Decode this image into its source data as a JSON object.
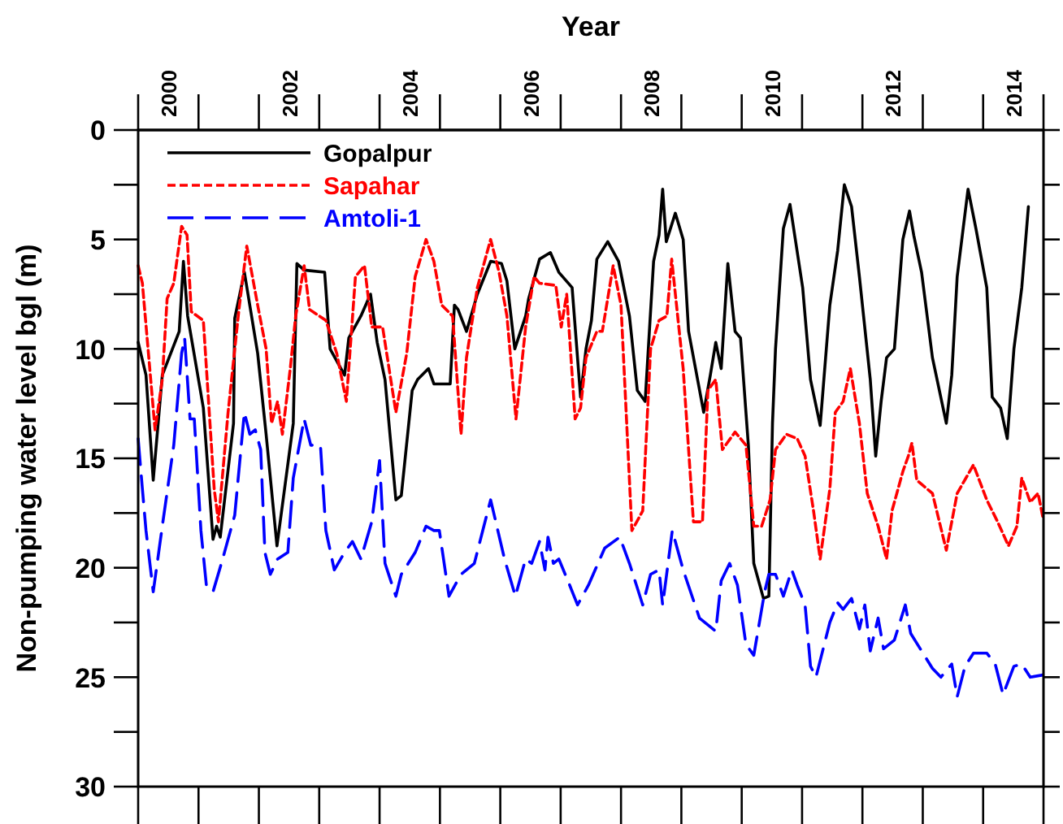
{
  "chart_data": {
    "type": "line",
    "xlabel": "Year",
    "ylabel": "Non-pumping water level bgl (m)",
    "xlim": [
      2000,
      2015
    ],
    "xticks": [
      {
        "value": 2000.5,
        "label": "2000"
      },
      {
        "value": 2002.5,
        "label": "2002"
      },
      {
        "value": 2004.5,
        "label": "2004"
      },
      {
        "value": 2006.5,
        "label": "2006"
      },
      {
        "value": 2008.5,
        "label": "2008"
      },
      {
        "value": 2010.5,
        "label": "2010"
      },
      {
        "value": 2012.5,
        "label": "2012"
      },
      {
        "value": 2014.5,
        "label": "2014"
      }
    ],
    "ylim": [
      30,
      0
    ],
    "yticks": [
      0,
      {
        "value": 2.5,
        "label": null
      },
      5,
      {
        "value": 7.5,
        "label": null
      },
      10,
      {
        "value": 12.5,
        "label": null
      },
      15,
      {
        "value": 17.5,
        "label": null
      },
      20,
      {
        "value": 22.5,
        "label": null
      },
      25,
      {
        "value": 27.5,
        "label": null
      },
      30
    ],
    "grid": false,
    "legend": "top left",
    "marker": "none",
    "series": [
      {
        "name": "Gopalpur",
        "color": "#000000",
        "line_style": "solid",
        "x": [
          2000.0,
          2000.13,
          2000.25,
          2000.4,
          2000.68,
          2000.75,
          2000.82,
          2001.08,
          2001.24,
          2001.3,
          2001.36,
          2001.58,
          2001.6,
          2001.76,
          2001.98,
          2002.12,
          2002.3,
          2002.57,
          2002.63,
          2002.75,
          2003.09,
          2003.18,
          2003.42,
          2003.49,
          2003.69,
          2003.85,
          2003.96,
          2004.09,
          2004.27,
          2004.36,
          2004.54,
          2004.63,
          2004.81,
          2004.9,
          2005.17,
          2005.24,
          2005.3,
          2005.44,
          2005.62,
          2005.84,
          2006.02,
          2006.11,
          2006.24,
          2006.42,
          2006.47,
          2006.65,
          2006.83,
          2006.97,
          2007.19,
          2007.33,
          2007.42,
          2007.51,
          2007.6,
          2007.78,
          2007.96,
          2008.14,
          2008.27,
          2008.4,
          2008.54,
          2008.63,
          2008.69,
          2008.75,
          2008.9,
          2009.03,
          2009.12,
          2009.37,
          2009.48,
          2009.57,
          2009.66,
          2009.77,
          2009.89,
          2009.98,
          2010.11,
          2010.2,
          2010.36,
          2010.45,
          2010.51,
          2010.56,
          2010.69,
          2010.8,
          2011.01,
          2011.14,
          2011.3,
          2011.46,
          2011.59,
          2011.7,
          2011.82,
          2011.95,
          2012.13,
          2012.22,
          2012.31,
          2012.4,
          2012.53,
          2012.67,
          2012.78,
          2012.85,
          2012.98,
          2013.16,
          2013.39,
          2013.48,
          2013.57,
          2013.75,
          2013.88,
          2014.06,
          2014.15,
          2014.29,
          2014.4,
          2014.51,
          2014.64,
          2014.75
        ],
        "values": [
          9.7,
          11.2,
          16.0,
          11.2,
          9.2,
          6.0,
          8.5,
          12.7,
          18.7,
          18.1,
          18.6,
          13.4,
          8.6,
          6.5,
          10.2,
          13.9,
          19.0,
          13.4,
          6.1,
          6.4,
          6.5,
          10.0,
          11.2,
          9.5,
          8.5,
          7.5,
          9.7,
          11.4,
          16.9,
          16.7,
          11.9,
          11.4,
          10.9,
          11.6,
          11.6,
          8.0,
          8.2,
          9.2,
          7.5,
          6.0,
          6.1,
          6.9,
          10.0,
          8.5,
          7.7,
          5.9,
          5.6,
          6.5,
          7.2,
          12.2,
          10.0,
          8.7,
          5.9,
          5.1,
          6.0,
          8.5,
          11.9,
          12.4,
          6.0,
          4.8,
          2.7,
          5.1,
          3.8,
          5.0,
          9.2,
          12.9,
          11.2,
          9.7,
          10.9,
          6.1,
          9.2,
          9.5,
          14.4,
          19.8,
          21.4,
          21.3,
          13.4,
          10.0,
          4.5,
          3.4,
          7.2,
          11.4,
          13.5,
          8.0,
          5.5,
          2.5,
          3.5,
          6.7,
          11.4,
          14.9,
          12.4,
          10.4,
          10.0,
          5.0,
          3.7,
          4.8,
          6.5,
          10.4,
          13.4,
          11.2,
          6.7,
          2.7,
          4.5,
          7.2,
          12.2,
          12.7,
          14.1,
          10.0,
          7.2,
          3.5
        ]
      },
      {
        "name": "Sapahar",
        "color": "#ff0000",
        "line_style": "dotted",
        "x": [
          2000.0,
          2000.07,
          2000.28,
          2000.4,
          2000.48,
          2000.59,
          2000.72,
          2000.81,
          2000.88,
          2001.08,
          2001.26,
          2001.33,
          2001.49,
          2001.67,
          2001.8,
          2001.98,
          2002.12,
          2002.21,
          2002.31,
          2002.39,
          2002.52,
          2002.61,
          2002.75,
          2002.84,
          2003.11,
          2003.29,
          2003.45,
          2003.6,
          2003.75,
          2003.87,
          2004.05,
          2004.27,
          2004.45,
          2004.59,
          2004.77,
          2004.9,
          2005.03,
          2005.21,
          2005.35,
          2005.44,
          2005.62,
          2005.84,
          2005.98,
          2006.11,
          2006.26,
          2006.42,
          2006.56,
          2006.65,
          2006.92,
          2007.01,
          2007.1,
          2007.24,
          2007.33,
          2007.42,
          2007.6,
          2007.69,
          2007.87,
          2008.0,
          2008.18,
          2008.36,
          2008.49,
          2008.63,
          2008.76,
          2008.84,
          2009.03,
          2009.2,
          2009.35,
          2009.44,
          2009.57,
          2009.68,
          2009.89,
          2010.07,
          2010.2,
          2010.33,
          2010.47,
          2010.56,
          2010.74,
          2010.92,
          2011.05,
          2011.19,
          2011.3,
          2011.46,
          2011.55,
          2011.68,
          2011.8,
          2011.95,
          2012.08,
          2012.26,
          2012.4,
          2012.49,
          2012.67,
          2012.76,
          2012.82,
          2012.9,
          2013.16,
          2013.39,
          2013.57,
          2013.84,
          2014.06,
          2014.24,
          2014.42,
          2014.56,
          2014.64,
          2014.78,
          2014.91,
          2014.99
        ],
        "values": [
          6.2,
          7.0,
          13.7,
          11.4,
          7.7,
          7.0,
          4.4,
          4.8,
          8.3,
          8.7,
          16.4,
          17.9,
          12.9,
          8.2,
          5.3,
          8.0,
          10.0,
          13.4,
          12.4,
          13.9,
          10.9,
          8.5,
          6.2,
          8.2,
          8.7,
          10.2,
          12.4,
          6.7,
          6.2,
          9.0,
          9.0,
          12.9,
          10.2,
          6.7,
          5.0,
          6.0,
          8.0,
          8.5,
          13.9,
          10.4,
          7.2,
          5.0,
          6.5,
          8.5,
          13.2,
          9.0,
          6.7,
          7.0,
          7.1,
          9.0,
          7.5,
          13.2,
          12.7,
          10.4,
          9.2,
          9.2,
          6.2,
          8.0,
          18.3,
          17.4,
          10.0,
          8.7,
          8.5,
          5.9,
          10.9,
          17.9,
          17.9,
          11.9,
          11.4,
          14.6,
          13.8,
          14.4,
          18.1,
          18.1,
          16.9,
          14.6,
          13.9,
          14.1,
          14.9,
          17.4,
          19.6,
          16.4,
          12.9,
          12.4,
          10.9,
          13.4,
          16.6,
          18.1,
          19.6,
          17.4,
          15.6,
          14.9,
          14.3,
          16.0,
          16.6,
          19.2,
          16.6,
          15.3,
          16.9,
          17.9,
          19.0,
          18.1,
          15.9,
          17.0,
          16.6,
          17.7
        ]
      },
      {
        "name": "Amtoli-1",
        "color": "#0000ff",
        "line_style": "dashed",
        "x": [
          2000.0,
          2000.07,
          2000.13,
          2000.25,
          2000.4,
          2000.59,
          2000.72,
          2000.77,
          2000.86,
          2000.93,
          2001.04,
          2001.13,
          2001.24,
          2001.4,
          2001.6,
          2001.76,
          2001.85,
          2001.94,
          2002.03,
          2002.1,
          2002.19,
          2002.31,
          2002.48,
          2002.57,
          2002.75,
          2002.86,
          2003.02,
          2003.11,
          2003.25,
          2003.42,
          2003.55,
          2003.69,
          2003.87,
          2004.0,
          2004.09,
          2004.27,
          2004.36,
          2004.59,
          2004.77,
          2004.9,
          2004.99,
          2005.15,
          2005.35,
          2005.57,
          2005.84,
          2006.07,
          2006.25,
          2006.42,
          2006.52,
          2006.65,
          2006.74,
          2006.79,
          2006.88,
          2006.97,
          2007.15,
          2007.28,
          2007.46,
          2007.73,
          2007.98,
          2008.14,
          2008.36,
          2008.49,
          2008.63,
          2008.69,
          2008.85,
          2009.03,
          2009.3,
          2009.57,
          2009.66,
          2009.8,
          2009.93,
          2010.07,
          2010.2,
          2010.38,
          2010.45,
          2010.56,
          2010.69,
          2010.83,
          2010.92,
          2011.05,
          2011.14,
          2011.23,
          2011.46,
          2011.59,
          2011.68,
          2011.82,
          2011.95,
          2012.04,
          2012.13,
          2012.26,
          2012.35,
          2012.53,
          2012.71,
          2012.8,
          2012.98,
          2013.16,
          2013.3,
          2013.48,
          2013.57,
          2013.7,
          2013.84,
          2014.06,
          2014.2,
          2014.33,
          2014.51,
          2014.64,
          2014.78,
          2014.99
        ],
        "values": [
          14.1,
          16.4,
          18.3,
          21.1,
          18.1,
          14.4,
          10.2,
          9.5,
          13.2,
          13.2,
          18.3,
          20.8,
          21.1,
          19.6,
          17.6,
          12.9,
          13.9,
          13.7,
          14.6,
          19.3,
          20.3,
          19.6,
          19.3,
          15.9,
          13.2,
          14.4,
          14.4,
          18.3,
          20.1,
          19.3,
          18.8,
          19.6,
          17.9,
          15.1,
          19.8,
          21.3,
          20.3,
          19.3,
          18.1,
          18.3,
          18.3,
          21.3,
          20.3,
          19.8,
          16.9,
          19.6,
          21.3,
          19.6,
          19.8,
          18.8,
          20.1,
          18.6,
          19.8,
          19.6,
          20.8,
          21.7,
          20.8,
          19.1,
          18.6,
          19.8,
          21.7,
          20.3,
          20.1,
          21.7,
          18.3,
          20.1,
          22.3,
          22.9,
          20.6,
          19.8,
          20.8,
          23.5,
          24.0,
          21.1,
          20.3,
          20.3,
          21.3,
          20.1,
          20.8,
          21.7,
          24.5,
          25.0,
          22.5,
          21.6,
          21.9,
          21.4,
          22.8,
          21.7,
          23.8,
          22.3,
          23.7,
          23.3,
          21.7,
          23.0,
          23.8,
          24.6,
          25.0,
          24.4,
          25.9,
          24.5,
          23.9,
          23.9,
          24.4,
          25.8,
          24.5,
          24.4,
          25.0,
          24.9
        ]
      }
    ]
  }
}
